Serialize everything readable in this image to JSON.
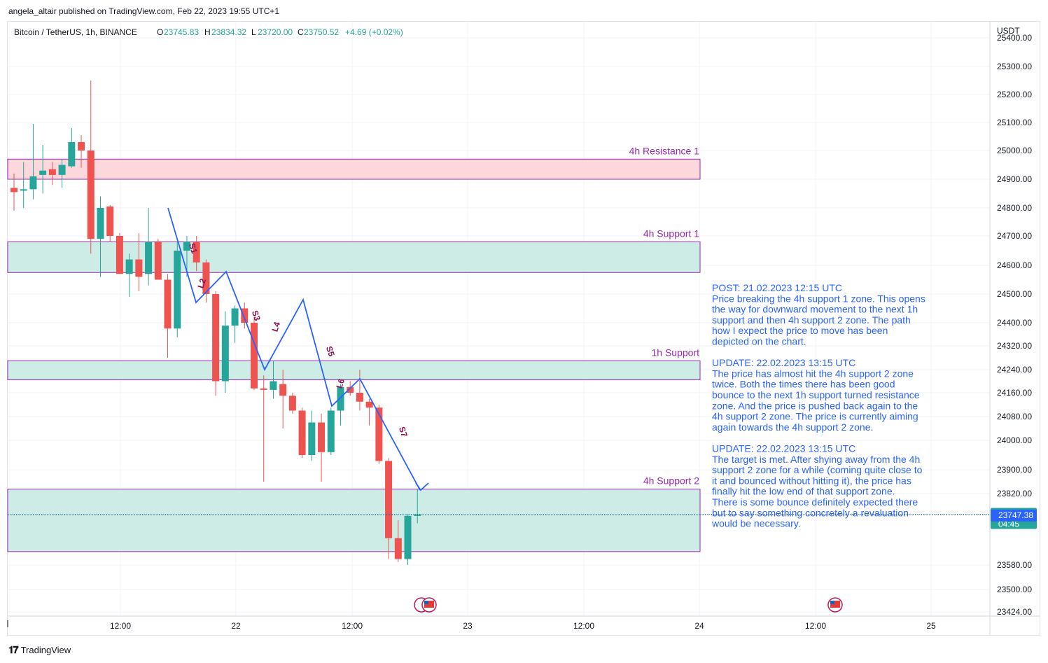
{
  "header": {
    "publisher": "angela_altair published on TradingView.com, Feb 22, 2023 19:55 UTC+1"
  },
  "symbol_bar": {
    "symbol": "Bitcoin / TetherUS, 1h, BINANCE",
    "open_label": "O",
    "open": "23745.83",
    "high_label": "H",
    "high": "23834.32",
    "low_label": "L",
    "low": "23720.00",
    "close_label": "C",
    "close": "23750.52",
    "change": "+4.69 (+0.02%)"
  },
  "currency": "USDT",
  "footer": {
    "brand": "TradingView"
  },
  "colors": {
    "up": "#26a69a",
    "down": "#ef5350",
    "path": "#2962ff",
    "zone_label": "#9c27b0",
    "resistance_fill": "#fcd8dc",
    "support_fill": "#cdece6",
    "annotation_text": "#2962ff",
    "wave_label": "#880e4f"
  },
  "price_badges": {
    "last": "23750.52",
    "countdown": "04:45",
    "marker": "23747.38"
  },
  "chart_data": {
    "type": "candlestick",
    "title": "Bitcoin / TetherUS, 1h, BINANCE",
    "y_axis": {
      "ticks": [
        "25400.00",
        "25300.00",
        "25200.00",
        "25100.00",
        "25000.00",
        "24900.00",
        "24800.00",
        "24700.00",
        "24600.00",
        "24500.00",
        "24400.00",
        "24320.00",
        "24240.00",
        "24160.00",
        "24080.00",
        "24000.00",
        "23900.00",
        "23820.00",
        "23580.00",
        "23500.00",
        "23424.00"
      ]
    },
    "x_axis": {
      "ticks": [
        "12:00",
        "22",
        "12:00",
        "23",
        "12:00",
        "24",
        "12:00",
        "25"
      ]
    },
    "zones": [
      {
        "label": "4h Resistance 1",
        "top": 24970,
        "bottom": 24900,
        "kind": "resistance"
      },
      {
        "label": "4h Support 1",
        "top": 24680,
        "bottom": 24575,
        "kind": "support"
      },
      {
        "label": "1h Support",
        "top": 24270,
        "bottom": 24205,
        "kind": "support"
      },
      {
        "label": "4h Support 2",
        "top": 23835,
        "bottom": 23625,
        "kind": "support"
      }
    ],
    "candles": [
      {
        "o": 24870,
        "h": 24920,
        "l": 24790,
        "c": 24855
      },
      {
        "o": 24860,
        "h": 24960,
        "l": 24800,
        "c": 24865
      },
      {
        "o": 24865,
        "h": 25095,
        "l": 24830,
        "c": 24910
      },
      {
        "o": 24915,
        "h": 25020,
        "l": 24850,
        "c": 24930
      },
      {
        "o": 24935,
        "h": 24960,
        "l": 24880,
        "c": 24915
      },
      {
        "o": 24915,
        "h": 24970,
        "l": 24870,
        "c": 24950
      },
      {
        "o": 24945,
        "h": 25080,
        "l": 24940,
        "c": 25030
      },
      {
        "o": 25030,
        "h": 25055,
        "l": 24940,
        "c": 25000
      },
      {
        "o": 25000,
        "h": 25250,
        "l": 24640,
        "c": 24690
      },
      {
        "o": 24690,
        "h": 24840,
        "l": 24560,
        "c": 24800
      },
      {
        "o": 24805,
        "h": 24810,
        "l": 24680,
        "c": 24700
      },
      {
        "o": 24700,
        "h": 24710,
        "l": 24570,
        "c": 24570
      },
      {
        "o": 24570,
        "h": 24640,
        "l": 24490,
        "c": 24620
      },
      {
        "o": 24620,
        "h": 24710,
        "l": 24510,
        "c": 24560
      },
      {
        "o": 24570,
        "h": 24800,
        "l": 24530,
        "c": 24680
      },
      {
        "o": 24680,
        "h": 24690,
        "l": 24550,
        "c": 24550
      },
      {
        "o": 24550,
        "h": 24570,
        "l": 24280,
        "c": 24380
      },
      {
        "o": 24380,
        "h": 24680,
        "l": 24350,
        "c": 24650
      },
      {
        "o": 24650,
        "h": 24700,
        "l": 24560,
        "c": 24680
      },
      {
        "o": 24680,
        "h": 24700,
        "l": 24580,
        "c": 24610
      },
      {
        "o": 24610,
        "h": 24620,
        "l": 24470,
        "c": 24500
      },
      {
        "o": 24500,
        "h": 24510,
        "l": 24150,
        "c": 24200
      },
      {
        "o": 24200,
        "h": 24440,
        "l": 24160,
        "c": 24390
      },
      {
        "o": 24390,
        "h": 24460,
        "l": 24330,
        "c": 24450
      },
      {
        "o": 24450,
        "h": 24470,
        "l": 24380,
        "c": 24400
      },
      {
        "o": 24400,
        "h": 24420,
        "l": 24170,
        "c": 24175
      },
      {
        "o": 24175,
        "h": 24220,
        "l": 23860,
        "c": 24170
      },
      {
        "o": 24170,
        "h": 24270,
        "l": 24140,
        "c": 24200
      },
      {
        "o": 24190,
        "h": 24240,
        "l": 24040,
        "c": 24150
      },
      {
        "o": 24150,
        "h": 24160,
        "l": 24090,
        "c": 24100
      },
      {
        "o": 24100,
        "h": 24110,
        "l": 23940,
        "c": 23950
      },
      {
        "o": 23950,
        "h": 24100,
        "l": 23930,
        "c": 24060
      },
      {
        "o": 24060,
        "h": 24090,
        "l": 23860,
        "c": 23960
      },
      {
        "o": 23960,
        "h": 24110,
        "l": 23950,
        "c": 24100
      },
      {
        "o": 24100,
        "h": 24190,
        "l": 24050,
        "c": 24180
      },
      {
        "o": 24180,
        "h": 24200,
        "l": 24150,
        "c": 24160
      },
      {
        "o": 24160,
        "h": 24240,
        "l": 24100,
        "c": 24130
      },
      {
        "o": 24130,
        "h": 24140,
        "l": 24050,
        "c": 24110
      },
      {
        "o": 24110,
        "h": 24120,
        "l": 23920,
        "c": 23930
      },
      {
        "o": 23930,
        "h": 23940,
        "l": 23600,
        "c": 23670
      },
      {
        "o": 23670,
        "h": 23730,
        "l": 23590,
        "c": 23600
      },
      {
        "o": 23600,
        "h": 23750,
        "l": 23580,
        "c": 23745
      },
      {
        "o": 23745,
        "h": 23834,
        "l": 23720,
        "c": 23750
      }
    ],
    "path_labels": [
      "S1",
      "L2",
      "S3",
      "L4",
      "S5",
      "L6",
      "S7"
    ],
    "annotations": [
      {
        "title": "POST: 21.02.2023 12:15 UTC",
        "lines": [
          "Price breaking the 4h support 1 zone. This opens",
          "the way for downward movement to the next 1h",
          "support and then 4h support 2 zone. The path",
          "how I expect the price to move has been",
          "depicted on the chart."
        ]
      },
      {
        "title": "UPDATE: 22.02.2023 13:15 UTC",
        "lines": [
          "The price has almost hit the 4h support 2 zone",
          "twice. Both the times there has been good",
          "bounce to the next 1h support turned resistance",
          "zone. And the price is pushed back again to the",
          "4h support 2 zone. The price is currently aiming",
          "again towards the 4h support 2 zone."
        ]
      },
      {
        "title": "UPDATE: 22.02.2023 13:15 UTC",
        "lines": [
          "The target is met. After shying away from the 4h",
          "support 2 zone for a while (coming quite close to",
          "it and bounced without hitting it), the price has",
          "finally hit the low end of that support zone.",
          "There is some bounce definitely expected there",
          "but to say something concretely a revaluation",
          "would be necessary."
        ]
      }
    ]
  }
}
